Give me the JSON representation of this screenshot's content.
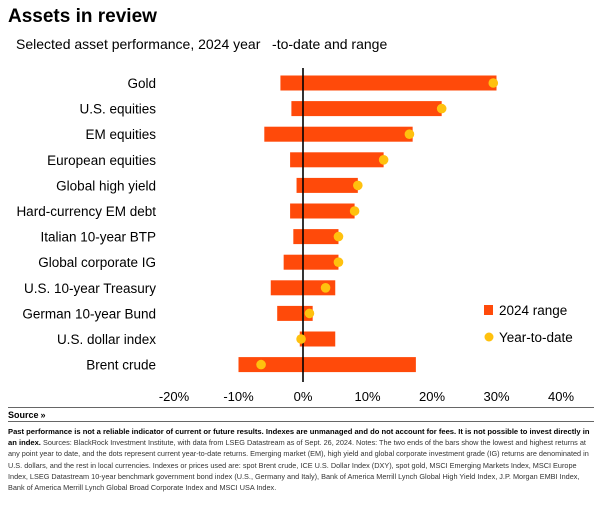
{
  "chart_data": {
    "type": "bar",
    "title": "Assets in review",
    "subtitle": "Selected asset performance, 2024 year   -to-date and range",
    "categories": [
      "Gold",
      "U.S. equities",
      "EM equities",
      "European equities",
      "Global high yield",
      "Hard-currency EM debt",
      "Italian 10-year BTP",
      "Global corporate IG",
      "U.S. 10-year Treasury",
      "German 10-year Bund",
      "U.S. dollar index",
      "Brent crude"
    ],
    "series": [
      {
        "name": "2024 range",
        "low": [
          -3.5,
          -1.8,
          -6.0,
          -2.0,
          -1.0,
          -2.0,
          -1.5,
          -3.0,
          -5.0,
          -4.0,
          -0.5,
          -10.0
        ],
        "high": [
          30.0,
          21.5,
          17.0,
          12.5,
          8.5,
          8.0,
          5.5,
          5.5,
          5.0,
          1.5,
          5.0,
          17.5
        ]
      },
      {
        "name": "Year-to-date",
        "values": [
          29.5,
          21.5,
          16.5,
          12.5,
          8.5,
          8.0,
          5.5,
          5.5,
          3.5,
          1.0,
          -0.3,
          -6.5
        ]
      }
    ],
    "ticks": [
      -20,
      -10,
      0,
      10,
      20,
      30,
      40
    ],
    "tick_labels": [
      "-20%",
      "-10%",
      "0%",
      "10%",
      "20%",
      "30%",
      "40%"
    ],
    "xlim": [
      -20,
      40
    ],
    "legend_position": "right",
    "colors": {
      "range": "#ff4a0a",
      "ytd": "#ffc10e",
      "axis": "#000000"
    }
  },
  "source_label": "Source",
  "source_chevron": "»",
  "disclaimer": "Past performance is not a reliable indicator of current or future results. Indexes are unmanaged and do not account for fees. It is not possible to invest directly in an index.",
  "notes": "Sources: BlackRock Investment Institute, with data from LSEG Datastream as of Sept. 26, 2024. Notes: The two ends of the bars show the lowest and highest returns at any point year to date, and the dots represent current year-to-date returns. Emerging market (EM), high yield and global corporate investment grade (IG) returns are denominated in U.S. dollars, and the rest in local currencies. Indexes or prices used are: spot Brent crude, ICE U.S. Dollar Index (DXY), spot gold, MSCI Emerging Markets Index, MSCI Europe Index, LSEG Datastream 10-year benchmark government bond index (U.S., Germany and Italy), Bank of America Merrill Lynch Global High Yield Index, J.P. Morgan EMBI Index, Bank of America Merrill Lynch Global Broad Corporate Index and MSCI USA Index."
}
